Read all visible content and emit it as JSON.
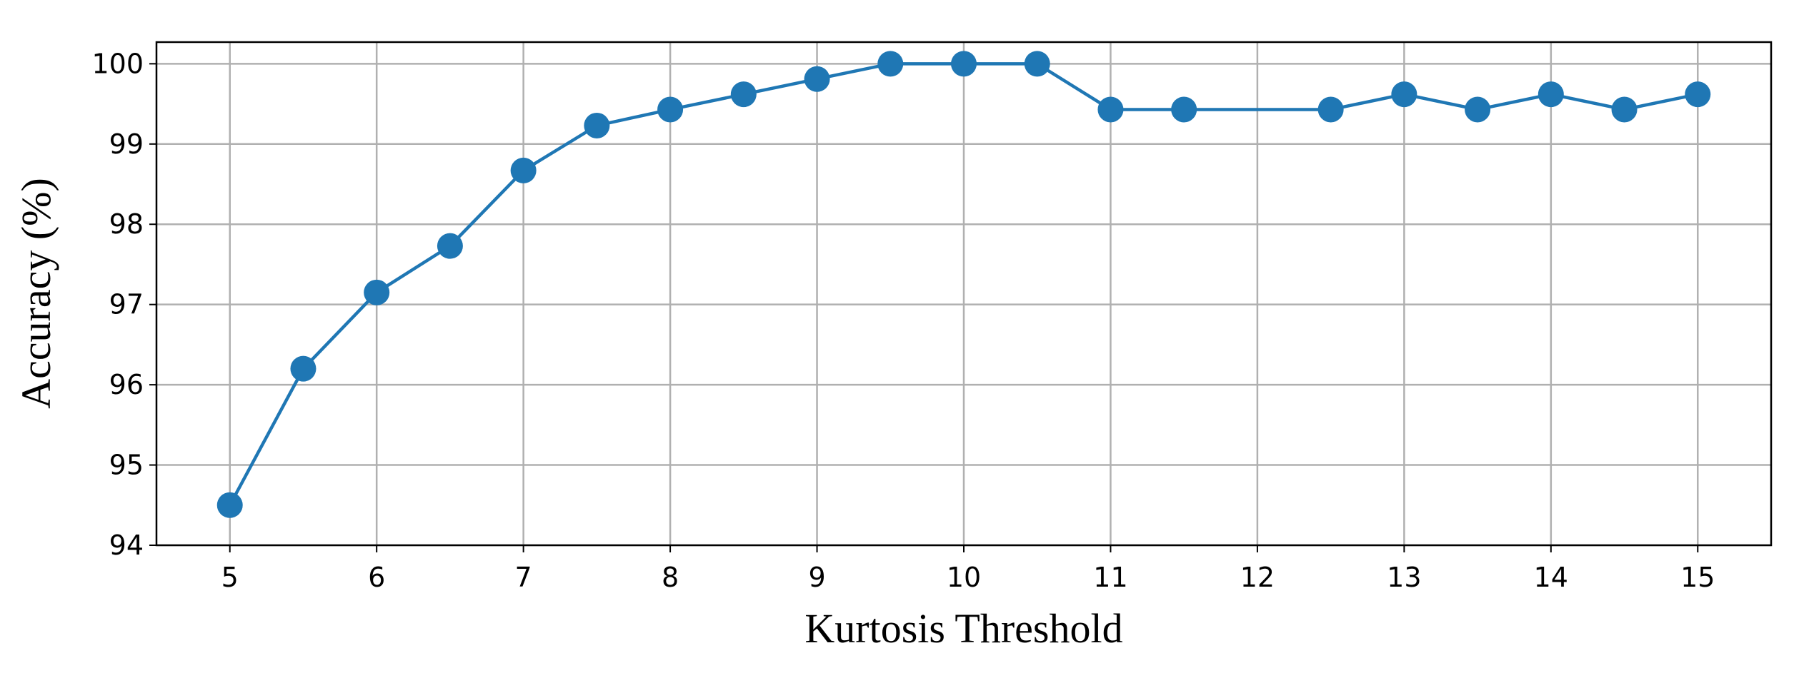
{
  "chart_data": {
    "type": "line",
    "x_label": "Kurtosis Threshold",
    "y_label": "Accuracy (%)",
    "x": [
      5,
      5.5,
      6,
      6.5,
      7,
      7.5,
      8,
      8.5,
      9,
      9.5,
      10,
      10.5,
      11,
      11.5,
      12.5,
      13,
      13.5,
      14,
      14.5,
      15
    ],
    "series": [
      {
        "color": "#1f77b4",
        "values": [
          94.5,
          96.2,
          97.15,
          97.73,
          98.67,
          99.23,
          99.43,
          99.62,
          99.81,
          100,
          100,
          100,
          99.43,
          99.43,
          99.43,
          99.62,
          99.43,
          99.62,
          99.43,
          99.62
        ]
      }
    ],
    "xlim": [
      4.5,
      15.5
    ],
    "ylim": [
      94,
      100.27
    ],
    "xticks": [
      5,
      6,
      7,
      8,
      9,
      10,
      11,
      12,
      13,
      14,
      15
    ],
    "yticks": [
      94,
      95,
      96,
      97,
      98,
      99,
      100
    ],
    "grid": true
  }
}
